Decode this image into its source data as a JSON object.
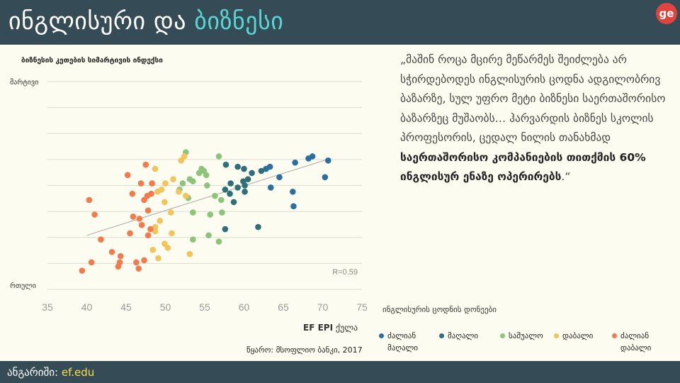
{
  "header": {
    "title_main": "ინგლისური და",
    "title_accent": "ბიზნესი",
    "logo_text": "ge",
    "bg_color": "#354b56",
    "accent_color": "#57d6d2"
  },
  "footer": {
    "label": "ანგარიში:",
    "link": "ef.edu"
  },
  "quote": {
    "text_plain": "„მაშინ როცა მცირე მეწარმეს შეიძლება არ სჭირდებოდეს ინგლისურის ცოდნა ადგილობრივ ბაზარზე, სულ უფრო მეტი ბიზნესი საერთაშორისო ბაზარზეც მუშაობს… ჰარვარდის ბიზნეს სკოლის პროფესორის, ცედალ ნილის თანახმად",
    "text_bold": "საერთაშორისო კომპანიების თითქმის 60% ინგლისურ ენაზე ოპერირებს",
    "text_end": ".“"
  },
  "chart_data": {
    "type": "scatter",
    "title": "ბიზნესის კეთების სიმარტივის ინდექსი",
    "xlabel_bold": "EF EPI",
    "xlabel_rest": "ქულა",
    "y_top_label": "მარტივი",
    "y_bottom_label": "რთული",
    "xlim": [
      35,
      75
    ],
    "xticks": [
      "35",
      "40",
      "45",
      "50",
      "55",
      "60",
      "65",
      "70",
      "75"
    ],
    "ylim": [
      0,
      100
    ],
    "grid": true,
    "r_label": "R=0.59",
    "trendline": [
      [
        40,
        26
      ],
      [
        71,
        63
      ]
    ],
    "legend_title": "ინგლისურის ცოდნის დონეები",
    "series": [
      {
        "name": "ძალიან მაღალი",
        "color": "#2a6fa0",
        "points": [
          [
            66.5,
            61
          ],
          [
            68.2,
            63
          ],
          [
            68.7,
            64
          ],
          [
            70.7,
            62
          ],
          [
            70.3,
            54
          ],
          [
            64.5,
            54
          ],
          [
            63.3,
            59
          ],
          [
            62.8,
            58
          ],
          [
            63.4,
            49
          ],
          [
            66.2,
            47
          ],
          [
            66.3,
            40
          ]
        ]
      },
      {
        "name": "მაღალი",
        "color": "#2f6f78",
        "points": [
          [
            57.7,
            60
          ],
          [
            59.2,
            59
          ],
          [
            60.0,
            58
          ],
          [
            61.0,
            56
          ],
          [
            62.2,
            57
          ],
          [
            60.5,
            53
          ],
          [
            59.9,
            52
          ],
          [
            58.3,
            51
          ],
          [
            60.1,
            50
          ],
          [
            57.6,
            48
          ],
          [
            59.2,
            49
          ],
          [
            58.2,
            46
          ],
          [
            60.1,
            47
          ],
          [
            58.7,
            42
          ],
          [
            57.6,
            29
          ],
          [
            61.8,
            30
          ]
        ]
      },
      {
        "name": "საშუალო",
        "color": "#8cc47a",
        "points": [
          [
            52.6,
            66
          ],
          [
            56.8,
            64
          ],
          [
            54.6,
            58
          ],
          [
            54.3,
            56
          ],
          [
            55.2,
            55
          ],
          [
            54.9,
            57
          ],
          [
            53.1,
            53
          ],
          [
            53.5,
            52
          ],
          [
            55.3,
            50
          ],
          [
            52.2,
            51
          ],
          [
            51.8,
            48
          ],
          [
            52.9,
            44
          ],
          [
            56.3,
            45
          ],
          [
            53.5,
            37
          ],
          [
            55.7,
            36
          ],
          [
            57.2,
            37
          ],
          [
            57.1,
            43
          ],
          [
            55.5,
            26
          ],
          [
            56.8,
            23
          ],
          [
            53.5,
            24
          ]
        ]
      },
      {
        "name": "დაბალი",
        "color": "#f2c45a",
        "points": [
          [
            52.4,
            64
          ],
          [
            52.0,
            62
          ],
          [
            48.7,
            58
          ],
          [
            50.0,
            51
          ],
          [
            51.0,
            53
          ],
          [
            49.5,
            48
          ],
          [
            49.0,
            47
          ],
          [
            51.7,
            47
          ],
          [
            52.6,
            45
          ],
          [
            49.9,
            42
          ],
          [
            50.7,
            37
          ],
          [
            49.3,
            33
          ],
          [
            48.7,
            30
          ],
          [
            48.7,
            28
          ],
          [
            50.8,
            27
          ],
          [
            49.9,
            22
          ],
          [
            48.4,
            19
          ],
          [
            50.3,
            20
          ],
          [
            53.1,
            17
          ],
          [
            49.1,
            15
          ]
        ]
      },
      {
        "name": "ძალიან დაბალი",
        "color": "#f47a4c",
        "points": [
          [
            45.2,
            55
          ],
          [
            47.5,
            60
          ],
          [
            46.9,
            51
          ],
          [
            48.3,
            51
          ],
          [
            45.8,
            46
          ],
          [
            47.7,
            45
          ],
          [
            48.2,
            46
          ],
          [
            47.3,
            43
          ],
          [
            40.3,
            43
          ],
          [
            47.8,
            38
          ],
          [
            46.7,
            34
          ],
          [
            41.0,
            36
          ],
          [
            45.9,
            35
          ],
          [
            47.0,
            31
          ],
          [
            48.1,
            29
          ],
          [
            47.8,
            26
          ],
          [
            45.5,
            27
          ],
          [
            41.8,
            24
          ],
          [
            43.2,
            18
          ],
          [
            44.3,
            16
          ],
          [
            46.3,
            13
          ],
          [
            47.3,
            14
          ],
          [
            44.2,
            13
          ],
          [
            40.6,
            13
          ],
          [
            44.0,
            11
          ],
          [
            46.6,
            10
          ],
          [
            39.4,
            9
          ]
        ]
      }
    ]
  },
  "source": "წყარო: მსოფლიო ბანკი, 2017"
}
